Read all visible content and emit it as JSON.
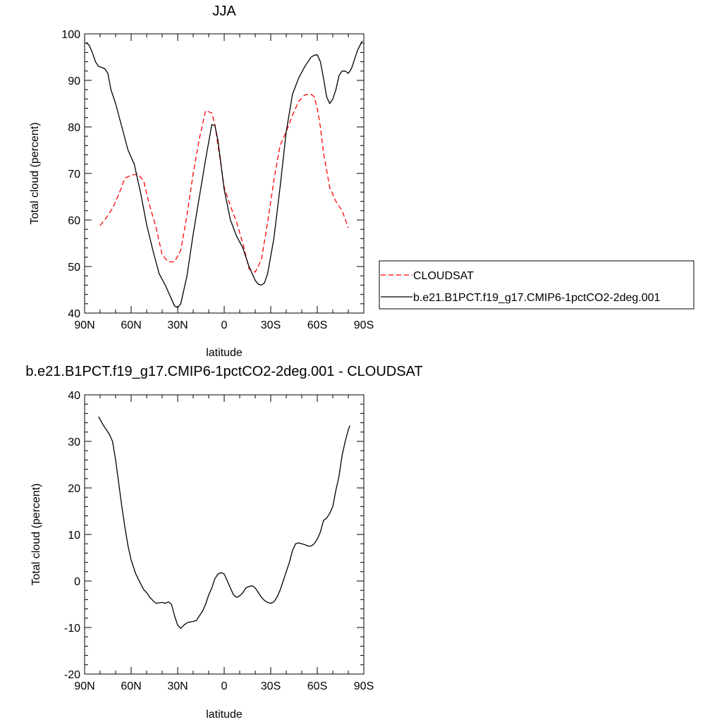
{
  "colors": {
    "cloudsat": "#ff0000",
    "model": "#000000",
    "axis": "#000000"
  },
  "chart_data": [
    {
      "type": "line",
      "title": "JJA",
      "xlabel": "latitude",
      "ylabel": "Total cloud (percent)",
      "xlim": [
        90,
        -90
      ],
      "ylim": [
        40,
        100
      ],
      "xticks": [
        90,
        60,
        30,
        0,
        -30,
        -60,
        -90
      ],
      "xtick_labels": [
        "90N",
        "60N",
        "30N",
        "0",
        "30S",
        "60S",
        "90S"
      ],
      "yticks": [
        40,
        50,
        60,
        70,
        80,
        90,
        100
      ],
      "ytick_labels": [
        "40",
        "50",
        "60",
        "70",
        "80",
        "90",
        "100"
      ],
      "legend": {
        "position": "right",
        "entries": [
          "CLOUDSAT",
          "b.e21.B1PCT.f19_g17.CMIP6-1pctCO2-2deg.001"
        ]
      },
      "series": [
        {
          "name": "CLOUDSAT",
          "style": "dashed",
          "color_key": "cloudsat",
          "x": [
            80,
            76,
            72,
            68,
            64,
            60,
            56,
            52,
            48,
            44,
            40,
            36,
            32,
            28,
            24,
            20,
            16,
            12,
            8,
            6,
            4,
            0,
            -4,
            -8,
            -12,
            -16,
            -20,
            -24,
            -28,
            -32,
            -36,
            -40,
            -44,
            -48,
            -52,
            -56,
            -58,
            -60,
            -62,
            -64,
            -68,
            -72,
            -76,
            -80
          ],
          "y": [
            58.8,
            60.5,
            62.5,
            65.5,
            69.0,
            69.6,
            69.9,
            68.5,
            63.0,
            58.5,
            52.5,
            51.0,
            51.0,
            53.5,
            61.0,
            70.0,
            77.5,
            83.5,
            83.0,
            80.5,
            76.0,
            67.0,
            63.0,
            59.5,
            55.0,
            49.5,
            48.8,
            51.5,
            59.5,
            68.5,
            76.0,
            79.0,
            82.5,
            85.5,
            86.9,
            87.0,
            86.5,
            84.0,
            80.0,
            74.5,
            67.0,
            64.0,
            62.0,
            58.3
          ]
        },
        {
          "name": "b.e21.B1PCT.f19_g17.CMIP6-1pctCO2-2deg.001",
          "style": "solid",
          "color_key": "model",
          "x": [
            89,
            87,
            85,
            83,
            81,
            79,
            77,
            75,
            73,
            70,
            66,
            62,
            58,
            54,
            50,
            46,
            42,
            38,
            34,
            32,
            30,
            28,
            24,
            20,
            16,
            12,
            8,
            6,
            4,
            0,
            -4,
            -8,
            -12,
            -16,
            -20,
            -22,
            -24,
            -26,
            -28,
            -32,
            -36,
            -40,
            -44,
            -48,
            -52,
            -56,
            -58,
            -60,
            -62,
            -64,
            -66,
            -68,
            -70,
            -72,
            -74,
            -76,
            -78,
            -80,
            -82,
            -84,
            -86,
            -89
          ],
          "y": [
            98.2,
            97.5,
            96.0,
            94.0,
            93.0,
            92.8,
            92.5,
            91.5,
            88.0,
            85.0,
            80.0,
            75.0,
            72.0,
            66.0,
            59.0,
            53.5,
            48.5,
            46.0,
            43.0,
            41.5,
            41.2,
            42.0,
            48.0,
            57.0,
            65.0,
            73.0,
            80.5,
            80.3,
            77.0,
            66.5,
            60.0,
            56.5,
            54.0,
            50.0,
            47.0,
            46.2,
            46.0,
            46.5,
            48.5,
            56.0,
            67.0,
            79.0,
            87.0,
            90.5,
            93.0,
            95.0,
            95.4,
            95.5,
            94.0,
            90.5,
            86.5,
            85.0,
            86.0,
            88.0,
            91.0,
            92.0,
            92.0,
            91.5,
            92.5,
            94.5,
            96.5,
            98.5
          ]
        }
      ]
    },
    {
      "type": "line",
      "title": "b.e21.B1PCT.f19_g17.CMIP6-1pctCO2-2deg.001 - CLOUDSAT",
      "xlabel": "latitude",
      "ylabel": "Total cloud (percent)",
      "xlim": [
        90,
        -90
      ],
      "ylim": [
        -20,
        40
      ],
      "xticks": [
        90,
        60,
        30,
        0,
        -30,
        -60,
        -90
      ],
      "xtick_labels": [
        "90N",
        "60N",
        "30N",
        "0",
        "30S",
        "60S",
        "90S"
      ],
      "yticks": [
        -20,
        -10,
        0,
        10,
        20,
        30,
        40
      ],
      "ytick_labels": [
        "-20",
        "-10",
        "0",
        "10",
        "20",
        "30",
        "40"
      ],
      "series": [
        {
          "style": "solid",
          "color_key": "model",
          "x": [
            81,
            78,
            76,
            74,
            72,
            70,
            68,
            66,
            64,
            62,
            60,
            57,
            54,
            52,
            50,
            48,
            46,
            44,
            42,
            40,
            38,
            36,
            34,
            32,
            30,
            28,
            26,
            24,
            22,
            20,
            18,
            16,
            14,
            12,
            10,
            8,
            6,
            4,
            2,
            0,
            -2,
            -4,
            -6,
            -8,
            -10,
            -12,
            -14,
            -16,
            -18,
            -20,
            -22,
            -24,
            -26,
            -28,
            -30,
            -32,
            -34,
            -36,
            -38,
            -40,
            -42,
            -44,
            -46,
            -48,
            -50,
            -52,
            -54,
            -56,
            -58,
            -60,
            -62,
            -64,
            -66,
            -68,
            -70,
            -72,
            -74,
            -76,
            -78,
            -80,
            -81
          ],
          "y": [
            35.3,
            33.5,
            32.5,
            31.5,
            30.0,
            26.0,
            21.0,
            16.0,
            11.5,
            7.5,
            4.5,
            1.5,
            -0.5,
            -1.8,
            -2.5,
            -3.5,
            -4.2,
            -4.8,
            -4.7,
            -4.6,
            -4.8,
            -4.5,
            -5.0,
            -7.5,
            -9.5,
            -10.2,
            -9.5,
            -9.0,
            -8.8,
            -8.7,
            -8.5,
            -7.5,
            -6.5,
            -5.0,
            -3.0,
            -1.5,
            0.5,
            1.5,
            1.8,
            1.5,
            0.0,
            -1.5,
            -3.0,
            -3.5,
            -3.2,
            -2.5,
            -1.5,
            -1.2,
            -1.0,
            -1.5,
            -2.5,
            -3.5,
            -4.2,
            -4.6,
            -4.8,
            -4.5,
            -3.5,
            -2.0,
            0.0,
            2.0,
            4.0,
            6.5,
            8.0,
            8.2,
            8.0,
            7.8,
            7.5,
            7.5,
            8.0,
            9.0,
            10.5,
            13.0,
            13.5,
            14.5,
            16.0,
            19.5,
            22.5,
            27.0,
            30.0,
            32.5,
            33.4
          ]
        }
      ]
    }
  ]
}
